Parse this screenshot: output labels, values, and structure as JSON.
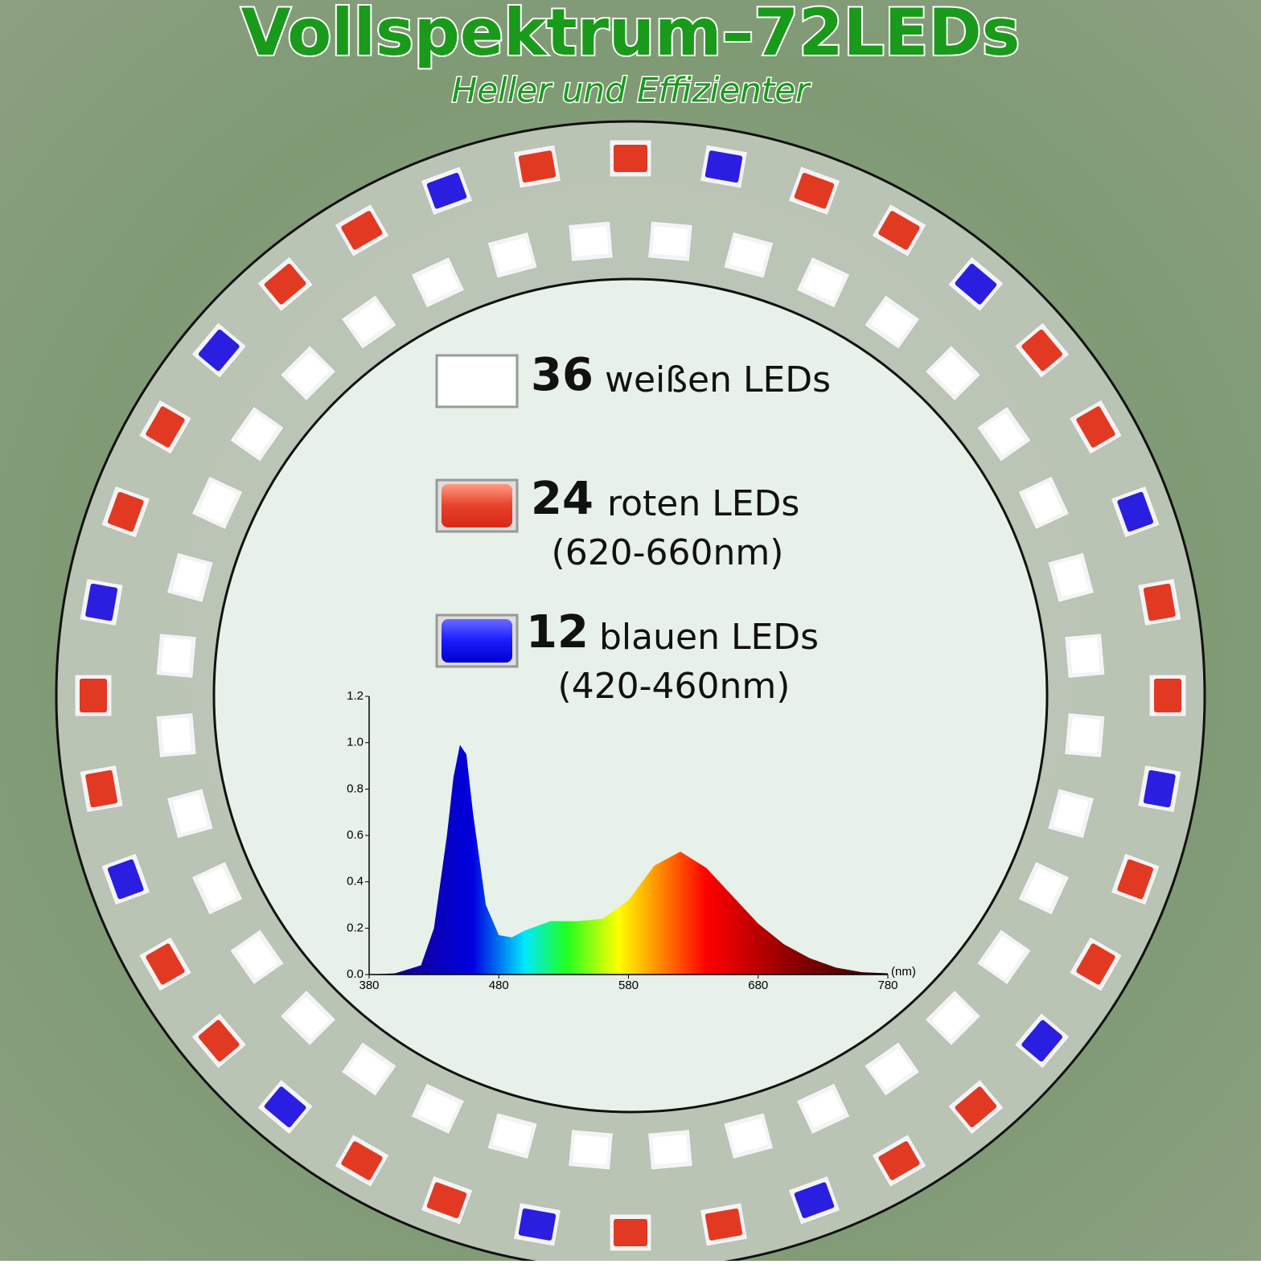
{
  "header": {
    "title": "Vollspektrum–72LEDs",
    "subtitle": "Heller und Effizienter"
  },
  "legend": [
    {
      "count": 36,
      "label": "weißen LEDs"
    },
    {
      "count": 24,
      "label": "roten LEDs",
      "range": "(620-660nm)"
    },
    {
      "count": 12,
      "label": "blauen LEDs",
      "range": "(420-460nm)"
    }
  ],
  "chart_data": {
    "type": "area",
    "x": [
      380,
      400,
      420,
      430,
      440,
      445,
      450,
      455,
      460,
      470,
      480,
      490,
      500,
      520,
      540,
      560,
      580,
      600,
      620,
      640,
      660,
      680,
      700,
      720,
      740,
      760,
      780
    ],
    "values": [
      0,
      0.005,
      0.04,
      0.2,
      0.6,
      0.85,
      0.99,
      0.95,
      0.7,
      0.3,
      0.17,
      0.16,
      0.19,
      0.23,
      0.23,
      0.24,
      0.32,
      0.47,
      0.53,
      0.46,
      0.34,
      0.22,
      0.13,
      0.07,
      0.03,
      0.01,
      0.005
    ],
    "xlim": [
      380,
      780
    ],
    "xticks": [
      380,
      480,
      580,
      680,
      780
    ],
    "ylim": [
      0,
      1.2
    ],
    "yticks": [
      {
        "value": 0,
        "label": "0.0"
      },
      {
        "value": 0.2,
        "label": "0.2"
      },
      {
        "value": 0.4,
        "label": "0.4"
      },
      {
        "value": 0.6,
        "label": "0.6"
      },
      {
        "value": 0.8,
        "label": "0.8"
      },
      {
        "value": 1.0,
        "label": "1.0"
      },
      {
        "value": 1.2,
        "label": "1.2"
      }
    ],
    "x_unit": "(nm)"
  }
}
